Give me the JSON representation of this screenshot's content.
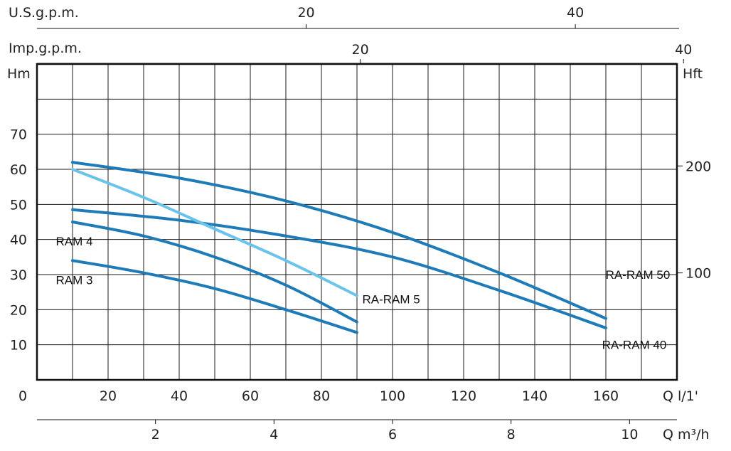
{
  "chart_data": {
    "type": "line",
    "x_axis": {
      "unit": "Q l/1'",
      "ticks": [
        0,
        20,
        40,
        60,
        80,
        100,
        120,
        140,
        160
      ],
      "range": [
        0,
        180
      ]
    },
    "x_axis_m3h": {
      "unit": "Q m³/h",
      "ticks": [
        2,
        4,
        6,
        8,
        10
      ]
    },
    "x_axis_usgpm": {
      "unit": "U.S.g.p.m.",
      "ticks": [
        20,
        40
      ]
    },
    "x_axis_impgpm": {
      "unit": "Imp.g.p.m.",
      "ticks": [
        20,
        40
      ]
    },
    "y_axis_left": {
      "unit": "Hm",
      "ticks": [
        10,
        20,
        30,
        40,
        50,
        60,
        70
      ],
      "range": [
        0,
        90
      ]
    },
    "y_axis_right": {
      "unit": "Hft",
      "ticks": [
        100,
        200
      ]
    },
    "colors": {
      "dark": "#1f7bb8",
      "light": "#6cc3ea"
    },
    "series": [
      {
        "name": "RA-RAM 50",
        "color": "dark",
        "x": [
          10,
          40,
          70,
          100,
          130,
          160
        ],
        "y": [
          62,
          57.5,
          51,
          42,
          30.5,
          17.5
        ]
      },
      {
        "name": "RA-RAM 40",
        "color": "dark",
        "x": [
          10,
          40,
          70,
          100,
          130,
          160
        ],
        "y": [
          48.5,
          45.5,
          41,
          35,
          25.5,
          14.8
        ]
      },
      {
        "name": "RA-RAM 5",
        "color": "light",
        "x": [
          10,
          30,
          50,
          70,
          90
        ],
        "y": [
          60,
          52,
          43,
          34,
          24
        ]
      },
      {
        "name": "RAM 4",
        "color": "dark",
        "x": [
          10,
          30,
          50,
          70,
          90
        ],
        "y": [
          45,
          41,
          35,
          27,
          16.5
        ]
      },
      {
        "name": "RAM 3",
        "color": "dark",
        "x": [
          10,
          30,
          50,
          70,
          90
        ],
        "y": [
          34,
          30.5,
          26,
          20,
          13.5
        ]
      }
    ]
  }
}
